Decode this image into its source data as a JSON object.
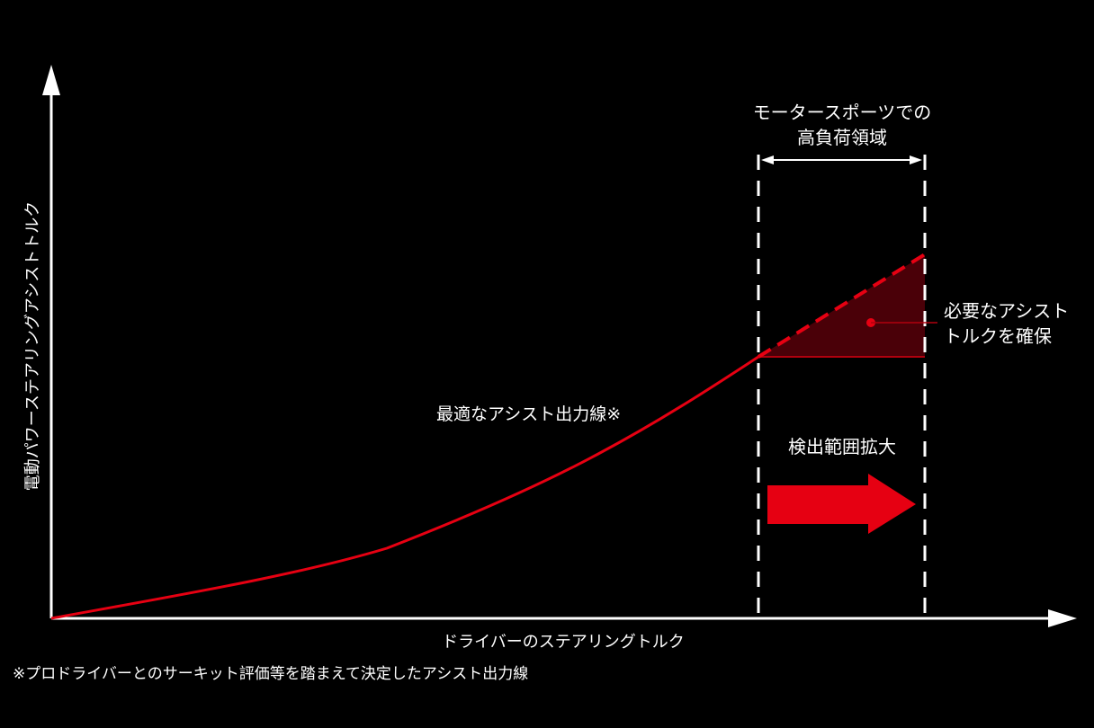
{
  "diagram": {
    "y_axis_label": "電動パワーステアリングアシストトルク",
    "x_axis_label": "ドライバーのステアリングトルク",
    "curve_label": "最適なアシスト出力線※",
    "region_label_line1": "モータースポーツでの",
    "region_label_line2": "高負荷領域",
    "assist_label_line1": "必要なアシスト",
    "assist_label_line2": "トルクを確保",
    "arrow_label": "検出範囲拡大",
    "footnote": "※プロドライバーとのサーキット評価等を踏まえて決定したアシスト出力線",
    "colors": {
      "background": "#000000",
      "axis": "#ffffff",
      "curve": "#e60012",
      "fill": "#4a0008",
      "arrow": "#e60012"
    }
  }
}
